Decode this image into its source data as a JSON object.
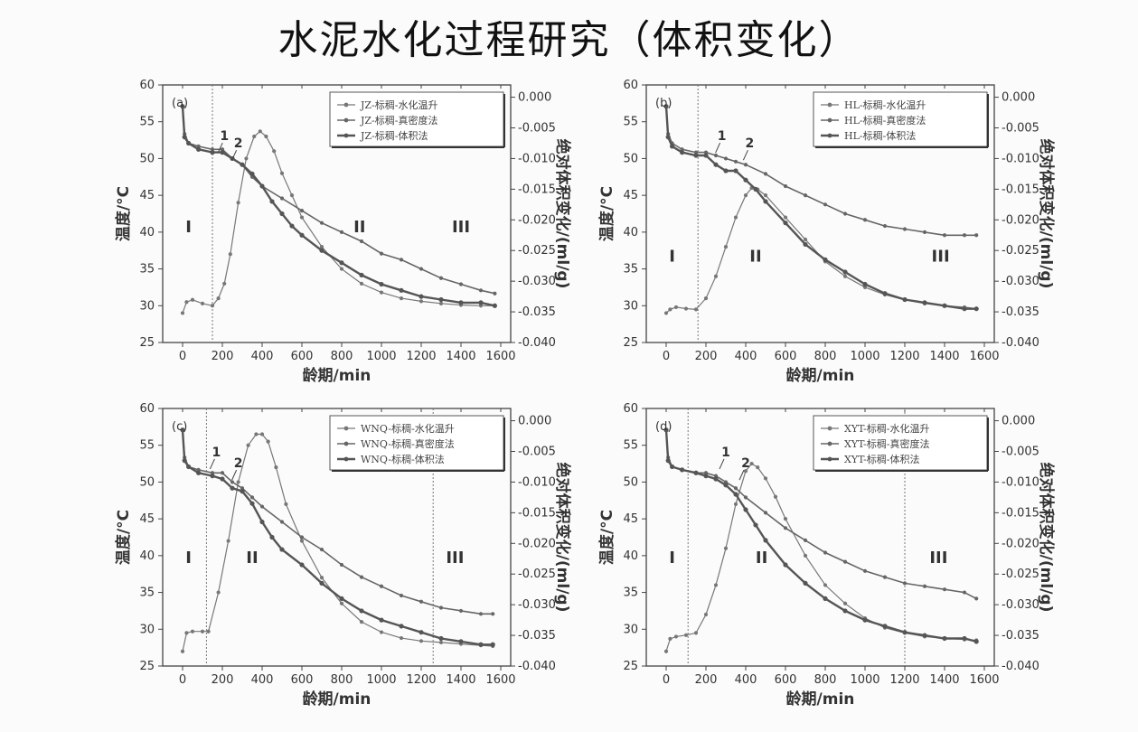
{
  "title": "水泥水化过程研究（体积变化）",
  "chart_data": [
    {
      "type": "line",
      "panel_label": "(a)",
      "xlabel": "龄期/min",
      "ylabel": "温度/°C",
      "y2label": "绝对体积变化/(ml/g)",
      "xlim": [
        -100,
        1650
      ],
      "ylim": [
        25,
        60
      ],
      "y2lim": [
        -0.04,
        0.002
      ],
      "xticks": [
        0,
        200,
        400,
        600,
        800,
        1000,
        1200,
        1400,
        1600
      ],
      "yticks": [
        25,
        30,
        35,
        40,
        45,
        50,
        55,
        60
      ],
      "y2ticks": [
        "0.000",
        "-0.005",
        "-0.010",
        "-0.015",
        "-0.020",
        "-0.025",
        "-0.030",
        "-0.035",
        "-0.040"
      ],
      "legend_position": "top-right",
      "stage_boundaries": [
        150
      ],
      "stages": [
        {
          "label": "I",
          "x": 30,
          "y": 40
        },
        {
          "label": "II",
          "x": 890,
          "y": 40
        },
        {
          "label": "III",
          "x": 1400,
          "y": 40
        }
      ],
      "peak_labels": [
        {
          "label": "1",
          "x": 210,
          "y": 52.5
        },
        {
          "label": "2",
          "x": 280,
          "y": 51.5
        }
      ],
      "series": [
        {
          "name": "JZ-标稠-水化温升",
          "axis": "left",
          "marker": true,
          "x": [
            0,
            20,
            50,
            100,
            150,
            180,
            210,
            240,
            280,
            320,
            360,
            390,
            420,
            460,
            500,
            550,
            600,
            700,
            800,
            900,
            1000,
            1100,
            1200,
            1300,
            1400,
            1500,
            1570
          ],
          "y": [
            29,
            30.5,
            30.8,
            30.3,
            30,
            31,
            33,
            37,
            44,
            50,
            53,
            53.7,
            53,
            51,
            48,
            45,
            42,
            38,
            35,
            33,
            31.8,
            31,
            30.6,
            30.3,
            30.1,
            30,
            30
          ]
        },
        {
          "name": "JZ-标稠-真密度法",
          "axis": "right",
          "marker": true,
          "x": [
            0,
            10,
            30,
            80,
            150,
            200,
            250,
            300,
            350,
            400,
            500,
            600,
            700,
            800,
            900,
            1000,
            1100,
            1200,
            1300,
            1400,
            1500,
            1570
          ],
          "y": [
            -0.0015,
            -0.006,
            -0.0075,
            -0.008,
            -0.0085,
            -0.0085,
            -0.01,
            -0.011,
            -0.013,
            -0.0145,
            -0.0165,
            -0.0185,
            -0.0205,
            -0.022,
            -0.0235,
            -0.0255,
            -0.0265,
            -0.028,
            -0.0295,
            -0.0305,
            -0.0315,
            -0.032
          ]
        },
        {
          "name": "JZ-标稠-体积法",
          "axis": "right",
          "marker": true,
          "x": [
            0,
            10,
            30,
            80,
            150,
            200,
            250,
            300,
            350,
            400,
            450,
            500,
            550,
            600,
            700,
            800,
            900,
            1000,
            1100,
            1200,
            1300,
            1400,
            1500,
            1570
          ],
          "y": [
            -0.0015,
            -0.0065,
            -0.0075,
            -0.0085,
            -0.009,
            -0.009,
            -0.01,
            -0.011,
            -0.0125,
            -0.0145,
            -0.017,
            -0.019,
            -0.021,
            -0.0225,
            -0.025,
            -0.027,
            -0.029,
            -0.0305,
            -0.0315,
            -0.0325,
            -0.033,
            -0.0335,
            -0.0335,
            -0.034
          ]
        }
      ]
    },
    {
      "type": "line",
      "panel_label": "(b)",
      "xlabel": "龄期/min",
      "ylabel": "温度/°C",
      "y2label": "绝对体积变化/(ml/g)",
      "xlim": [
        -100,
        1650
      ],
      "ylim": [
        25,
        60
      ],
      "y2lim": [
        -0.04,
        0.002
      ],
      "xticks": [
        0,
        200,
        400,
        600,
        800,
        1000,
        1200,
        1400,
        1600
      ],
      "yticks": [
        25,
        30,
        35,
        40,
        45,
        50,
        55,
        60
      ],
      "y2ticks": [
        "0.000",
        "-0.005",
        "-0.010",
        "-0.015",
        "-0.020",
        "-0.025",
        "-0.030",
        "-0.035",
        "-0.040"
      ],
      "legend_position": "top-right",
      "stage_boundaries": [
        160
      ],
      "stages": [
        {
          "label": "I",
          "x": 30,
          "y": 36
        },
        {
          "label": "II",
          "x": 450,
          "y": 36
        },
        {
          "label": "III",
          "x": 1380,
          "y": 36
        }
      ],
      "peak_labels": [
        {
          "label": "1",
          "x": 280,
          "y": 52.5
        },
        {
          "label": "2",
          "x": 420,
          "y": 51.5
        }
      ],
      "series": [
        {
          "name": "HL-标稠-水化温升",
          "axis": "left",
          "marker": true,
          "x": [
            0,
            20,
            50,
            100,
            150,
            200,
            250,
            300,
            350,
            400,
            430,
            460,
            500,
            600,
            700,
            800,
            900,
            1000,
            1100,
            1200,
            1300,
            1400,
            1500,
            1560
          ],
          "y": [
            29,
            29.5,
            29.8,
            29.6,
            29.5,
            31,
            34,
            38,
            42,
            45,
            46,
            45.8,
            45,
            42,
            39,
            36,
            34,
            32.5,
            31.5,
            30.8,
            30.3,
            30,
            29.8,
            29.6
          ]
        },
        {
          "name": "HL-标稠-真密度法",
          "axis": "right",
          "marker": true,
          "x": [
            0,
            10,
            30,
            80,
            150,
            200,
            250,
            300,
            350,
            400,
            500,
            600,
            700,
            800,
            900,
            1000,
            1100,
            1200,
            1300,
            1400,
            1500,
            1560
          ],
          "y": [
            -0.0015,
            -0.006,
            -0.0075,
            -0.0085,
            -0.009,
            -0.009,
            -0.0095,
            -0.01,
            -0.0105,
            -0.011,
            -0.0125,
            -0.0145,
            -0.016,
            -0.0175,
            -0.019,
            -0.02,
            -0.021,
            -0.0215,
            -0.022,
            -0.0225,
            -0.0225,
            -0.0225
          ]
        },
        {
          "name": "HL-标稠-体积法",
          "axis": "right",
          "marker": true,
          "x": [
            0,
            10,
            30,
            80,
            150,
            200,
            250,
            300,
            350,
            400,
            450,
            500,
            600,
            700,
            800,
            900,
            1000,
            1100,
            1200,
            1300,
            1400,
            1500,
            1560
          ],
          "y": [
            -0.0015,
            -0.0065,
            -0.008,
            -0.009,
            -0.0095,
            -0.0095,
            -0.011,
            -0.012,
            -0.012,
            -0.0135,
            -0.015,
            -0.017,
            -0.0205,
            -0.024,
            -0.0265,
            -0.0285,
            -0.0305,
            -0.032,
            -0.033,
            -0.0335,
            -0.034,
            -0.0345,
            -0.0345
          ]
        }
      ]
    },
    {
      "type": "line",
      "panel_label": "(c)",
      "xlabel": "龄期/min",
      "ylabel": "温度/°C",
      "y2label": "绝对体积变化/(ml/g)",
      "xlim": [
        -100,
        1650
      ],
      "ylim": [
        25,
        60
      ],
      "y2lim": [
        -0.04,
        0.002
      ],
      "xticks": [
        0,
        200,
        400,
        600,
        800,
        1000,
        1200,
        1400,
        1600
      ],
      "yticks": [
        25,
        30,
        35,
        40,
        45,
        50,
        55,
        60
      ],
      "y2ticks": [
        "0.000",
        "-0.005",
        "-0.010",
        "-0.015",
        "-0.020",
        "-0.025",
        "-0.030",
        "-0.035",
        "-0.040"
      ],
      "legend_position": "top-right",
      "stage_boundaries": [
        120,
        1260
      ],
      "stages": [
        {
          "label": "I",
          "x": 30,
          "y": 39
        },
        {
          "label": "II",
          "x": 350,
          "y": 39
        },
        {
          "label": "III",
          "x": 1370,
          "y": 39
        }
      ],
      "peak_labels": [
        {
          "label": "1",
          "x": 170,
          "y": 53.5
        },
        {
          "label": "2",
          "x": 280,
          "y": 52
        }
      ],
      "series": [
        {
          "name": "WNQ-标稠-水化温升",
          "axis": "left",
          "marker": true,
          "x": [
            0,
            20,
            50,
            100,
            130,
            180,
            230,
            280,
            330,
            370,
            400,
            430,
            470,
            520,
            600,
            700,
            800,
            900,
            1000,
            1100,
            1200,
            1300,
            1400,
            1500,
            1560
          ],
          "y": [
            27,
            29.5,
            29.7,
            29.7,
            29.7,
            35,
            42,
            50,
            55,
            56.5,
            56.5,
            55.5,
            52,
            47,
            42,
            37,
            33.5,
            31,
            29.6,
            28.8,
            28.4,
            28.2,
            28,
            27.8,
            27.7
          ]
        },
        {
          "name": "WNQ-标稠-真密度法",
          "axis": "right",
          "marker": true,
          "x": [
            0,
            10,
            30,
            80,
            150,
            200,
            250,
            300,
            350,
            400,
            500,
            600,
            700,
            800,
            900,
            1000,
            1100,
            1200,
            1300,
            1400,
            1500,
            1560
          ],
          "y": [
            -0.0015,
            -0.006,
            -0.0075,
            -0.008,
            -0.0085,
            -0.0085,
            -0.01,
            -0.011,
            -0.0125,
            -0.014,
            -0.0165,
            -0.019,
            -0.021,
            -0.0235,
            -0.0255,
            -0.027,
            -0.0285,
            -0.0295,
            -0.0305,
            -0.031,
            -0.0315,
            -0.0315
          ]
        },
        {
          "name": "WNQ-标稠-体积法",
          "axis": "right",
          "marker": true,
          "x": [
            0,
            10,
            30,
            80,
            150,
            200,
            250,
            300,
            350,
            400,
            450,
            500,
            600,
            700,
            800,
            900,
            1000,
            1100,
            1200,
            1300,
            1400,
            1500,
            1560
          ],
          "y": [
            -0.0015,
            -0.0065,
            -0.0075,
            -0.0085,
            -0.009,
            -0.0095,
            -0.011,
            -0.0115,
            -0.0135,
            -0.0165,
            -0.019,
            -0.021,
            -0.0235,
            -0.0265,
            -0.029,
            -0.031,
            -0.0325,
            -0.0335,
            -0.0345,
            -0.0355,
            -0.036,
            -0.0365,
            -0.0365
          ]
        }
      ]
    },
    {
      "type": "line",
      "panel_label": "(d)",
      "xlabel": "龄期/min",
      "ylabel": "温度/°C",
      "y2label": "绝对体积变化/(ml/g)",
      "xlim": [
        -100,
        1650
      ],
      "ylim": [
        25,
        60
      ],
      "y2lim": [
        -0.04,
        0.002
      ],
      "xticks": [
        0,
        200,
        400,
        600,
        800,
        1000,
        1200,
        1400,
        1600
      ],
      "yticks": [
        25,
        30,
        35,
        40,
        45,
        50,
        55,
        60
      ],
      "y2ticks": [
        "0.000",
        "-0.005",
        "-0.010",
        "-0.015",
        "-0.020",
        "-0.025",
        "-0.030",
        "-0.035",
        "-0.040"
      ],
      "legend_position": "top-right",
      "stage_boundaries": [
        110,
        1200
      ],
      "stages": [
        {
          "label": "I",
          "x": 30,
          "y": 39
        },
        {
          "label": "II",
          "x": 480,
          "y": 39
        },
        {
          "label": "III",
          "x": 1370,
          "y": 39
        }
      ],
      "peak_labels": [
        {
          "label": "1",
          "x": 300,
          "y": 53.5
        },
        {
          "label": "2",
          "x": 400,
          "y": 52
        }
      ],
      "series": [
        {
          "name": "XYT-标稠-水化温升",
          "axis": "left",
          "marker": true,
          "x": [
            0,
            20,
            50,
            100,
            150,
            200,
            250,
            300,
            350,
            400,
            430,
            460,
            500,
            550,
            600,
            700,
            800,
            900,
            1000,
            1100,
            1200,
            1300,
            1400,
            1500,
            1560
          ],
          "y": [
            27,
            28.7,
            29,
            29.2,
            29.5,
            32,
            36,
            41,
            47,
            51.5,
            52.5,
            52,
            50.5,
            48,
            45,
            40,
            36,
            33.5,
            31.5,
            30.2,
            29.5,
            29,
            28.8,
            28.6,
            28.5
          ]
        },
        {
          "name": "XYT-标稠-真密度法",
          "axis": "right",
          "marker": true,
          "x": [
            0,
            10,
            30,
            80,
            150,
            200,
            250,
            300,
            350,
            400,
            500,
            600,
            700,
            800,
            900,
            1000,
            1100,
            1200,
            1300,
            1400,
            1500,
            1560
          ],
          "y": [
            -0.0015,
            -0.006,
            -0.0075,
            -0.008,
            -0.0085,
            -0.0085,
            -0.009,
            -0.01,
            -0.011,
            -0.0125,
            -0.015,
            -0.0175,
            -0.0195,
            -0.0215,
            -0.023,
            -0.0245,
            -0.0255,
            -0.0265,
            -0.027,
            -0.0275,
            -0.028,
            -0.029
          ]
        },
        {
          "name": "XYT-标稠-体积法",
          "axis": "right",
          "marker": true,
          "x": [
            0,
            10,
            30,
            80,
            150,
            200,
            250,
            300,
            350,
            400,
            450,
            500,
            600,
            700,
            800,
            900,
            1000,
            1100,
            1200,
            1300,
            1400,
            1500,
            1560
          ],
          "y": [
            -0.0015,
            -0.0065,
            -0.0075,
            -0.008,
            -0.0085,
            -0.009,
            -0.0095,
            -0.0105,
            -0.012,
            -0.0145,
            -0.017,
            -0.0195,
            -0.0235,
            -0.0265,
            -0.029,
            -0.031,
            -0.0325,
            -0.0335,
            -0.0345,
            -0.035,
            -0.0355,
            -0.0355,
            -0.036
          ]
        }
      ]
    }
  ]
}
